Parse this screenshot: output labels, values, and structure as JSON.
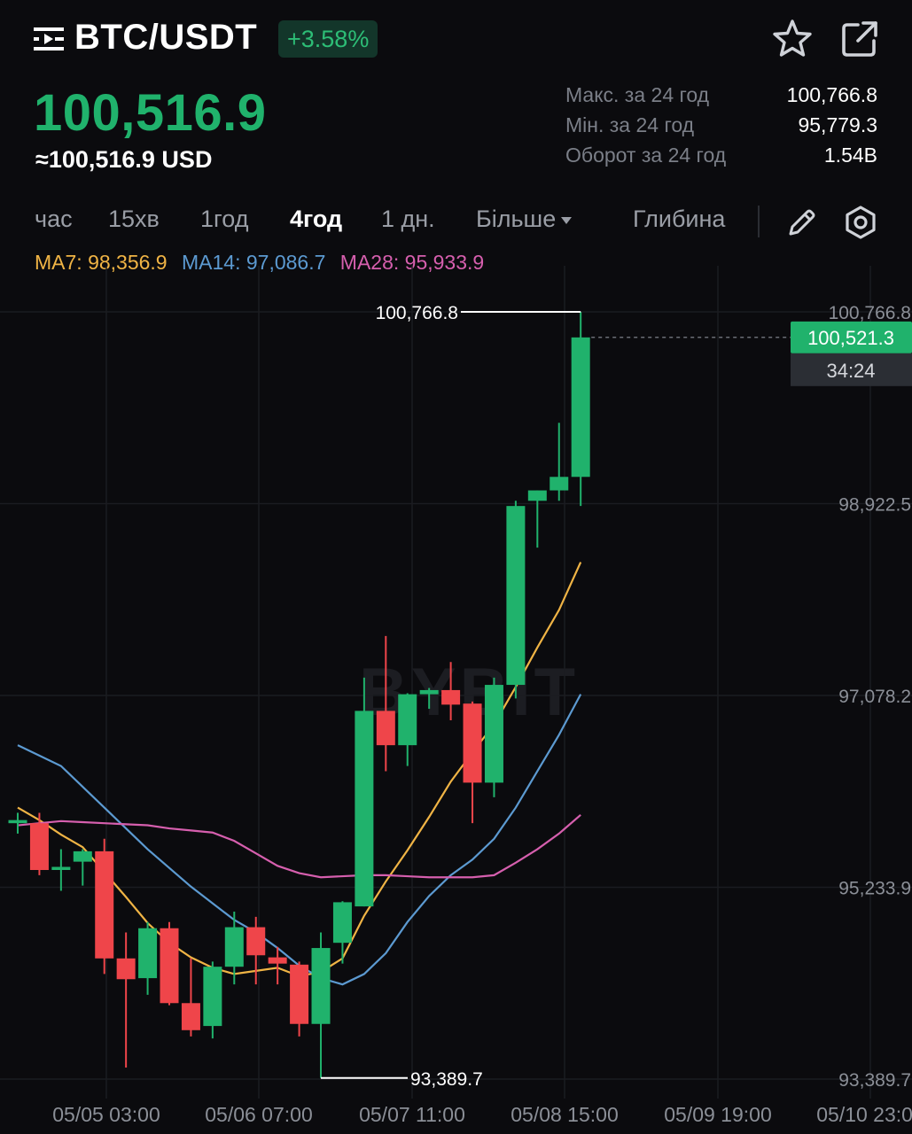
{
  "header": {
    "menu_icon": "menu-icon",
    "pair": "BTC/USDT",
    "change": "+3.58%",
    "favorite_icon": "star-icon",
    "share_icon": "share-icon"
  },
  "price": {
    "last": "100,516.9",
    "usd": "≈100,516.9 USD"
  },
  "stats": [
    {
      "label": "Макс. за 24 год",
      "value": "100,766.8"
    },
    {
      "label": "Мін. за 24 год",
      "value": "95,779.3"
    },
    {
      "label": "Оборот за 24 год",
      "value": "1.54B"
    }
  ],
  "tabs": [
    {
      "label": "час"
    },
    {
      "label": "15хв"
    },
    {
      "label": "1год"
    },
    {
      "label": "4год",
      "active": true
    },
    {
      "label": "1 дн."
    },
    {
      "label": "Більше"
    },
    {
      "label": "Глибина"
    }
  ],
  "tools": {
    "draw_icon": "pencil-icon",
    "settings_icon": "gear-icon"
  },
  "ma_legend": {
    "ma7": "MA7: 98,356.9",
    "ma14": "MA14: 97,086.7",
    "ma28": "MA28: 95,933.9"
  },
  "colors": {
    "up": "#20b26c",
    "down": "#ef454a",
    "ma7": "#f0b445",
    "ma14": "#5c9ad1",
    "ma28": "#d65fae",
    "background": "#0b0b0e"
  },
  "chart_data": {
    "type": "candlestick",
    "y_ticks": [
      "100,766.8",
      "98,922.5",
      "97,078.2",
      "95,233.9",
      "93,389.7"
    ],
    "y_tick_values": [
      100766.8,
      98922.5,
      97078.2,
      95233.9,
      93389.7
    ],
    "x_ticks": [
      "05/05 03:00",
      "05/06 07:00",
      "05/07 11:00",
      "05/08 15:00",
      "05/09 19:00",
      "05/10 23:00"
    ],
    "ylim": [
      93389.7,
      100766.8
    ],
    "grid": true,
    "high_label": "100,766.8",
    "low_label": "93,389.7",
    "current_price": "100,521.3",
    "current_price_value": 100521.3,
    "countdown": "34:24",
    "candles": [
      {
        "o": 95850,
        "h": 95950,
        "l": 95750,
        "c": 95880
      },
      {
        "o": 95850,
        "h": 95950,
        "l": 95350,
        "c": 95400
      },
      {
        "o": 95400,
        "h": 95600,
        "l": 95200,
        "c": 95430
      },
      {
        "o": 95480,
        "h": 95600,
        "l": 95250,
        "c": 95580
      },
      {
        "o": 95580,
        "h": 95700,
        "l": 94400,
        "c": 94550
      },
      {
        "o": 94550,
        "h": 94800,
        "l": 93500,
        "c": 94350
      },
      {
        "o": 94360,
        "h": 94900,
        "l": 94200,
        "c": 94840
      },
      {
        "o": 94840,
        "h": 94900,
        "l": 94100,
        "c": 94120
      },
      {
        "o": 94120,
        "h": 94550,
        "l": 93800,
        "c": 93860
      },
      {
        "o": 93900,
        "h": 94520,
        "l": 93780,
        "c": 94470
      },
      {
        "o": 94470,
        "h": 95000,
        "l": 94300,
        "c": 94850
      },
      {
        "o": 94850,
        "h": 94950,
        "l": 94300,
        "c": 94580
      },
      {
        "o": 94560,
        "h": 94660,
        "l": 94300,
        "c": 94500
      },
      {
        "o": 94490,
        "h": 94520,
        "l": 93800,
        "c": 93920
      },
      {
        "o": 93920,
        "h": 94800,
        "l": 93400,
        "c": 94650
      },
      {
        "o": 94700,
        "h": 95100,
        "l": 94500,
        "c": 95090
      },
      {
        "o": 95050,
        "h": 97250,
        "l": 95050,
        "c": 96930
      },
      {
        "o": 96930,
        "h": 97650,
        "l": 96350,
        "c": 96600
      },
      {
        "o": 96600,
        "h": 97100,
        "l": 96400,
        "c": 97090
      },
      {
        "o": 97090,
        "h": 97150,
        "l": 96950,
        "c": 97130
      },
      {
        "o": 97130,
        "h": 97400,
        "l": 96840,
        "c": 96990
      },
      {
        "o": 97000,
        "h": 97020,
        "l": 95850,
        "c": 96240
      },
      {
        "o": 96240,
        "h": 97250,
        "l": 96100,
        "c": 97180
      },
      {
        "o": 97180,
        "h": 98950,
        "l": 97050,
        "c": 98900
      },
      {
        "o": 98950,
        "h": 99050,
        "l": 98500,
        "c": 99050
      },
      {
        "o": 99050,
        "h": 99700,
        "l": 98950,
        "c": 99180
      },
      {
        "o": 99180,
        "h": 100767,
        "l": 98900,
        "c": 100521
      }
    ],
    "series": [
      {
        "name": "MA7",
        "values": [
          96000,
          95880,
          95740,
          95620,
          95380,
          95140,
          94890,
          94700,
          94560,
          94460,
          94400,
          94430,
          94460,
          94380,
          94420,
          94550,
          94960,
          95290,
          95590,
          95910,
          96250,
          96530,
          96800,
          97160,
          97540,
          97900,
          98360
        ]
      },
      {
        "name": "MA14",
        "values": [
          96600,
          96500,
          96400,
          96200,
          96000,
          95800,
          95600,
          95420,
          95240,
          95080,
          94920,
          94800,
          94650,
          94480,
          94360,
          94300,
          94400,
          94600,
          94900,
          95150,
          95350,
          95500,
          95700,
          96000,
          96350,
          96700,
          97090
        ]
      },
      {
        "name": "MA28",
        "values": [
          95830,
          95850,
          95870,
          95860,
          95850,
          95840,
          95830,
          95800,
          95780,
          95760,
          95680,
          95560,
          95440,
          95370,
          95330,
          95340,
          95350,
          95350,
          95340,
          95330,
          95330,
          95330,
          95350,
          95470,
          95600,
          95750,
          95930
        ]
      }
    ]
  }
}
